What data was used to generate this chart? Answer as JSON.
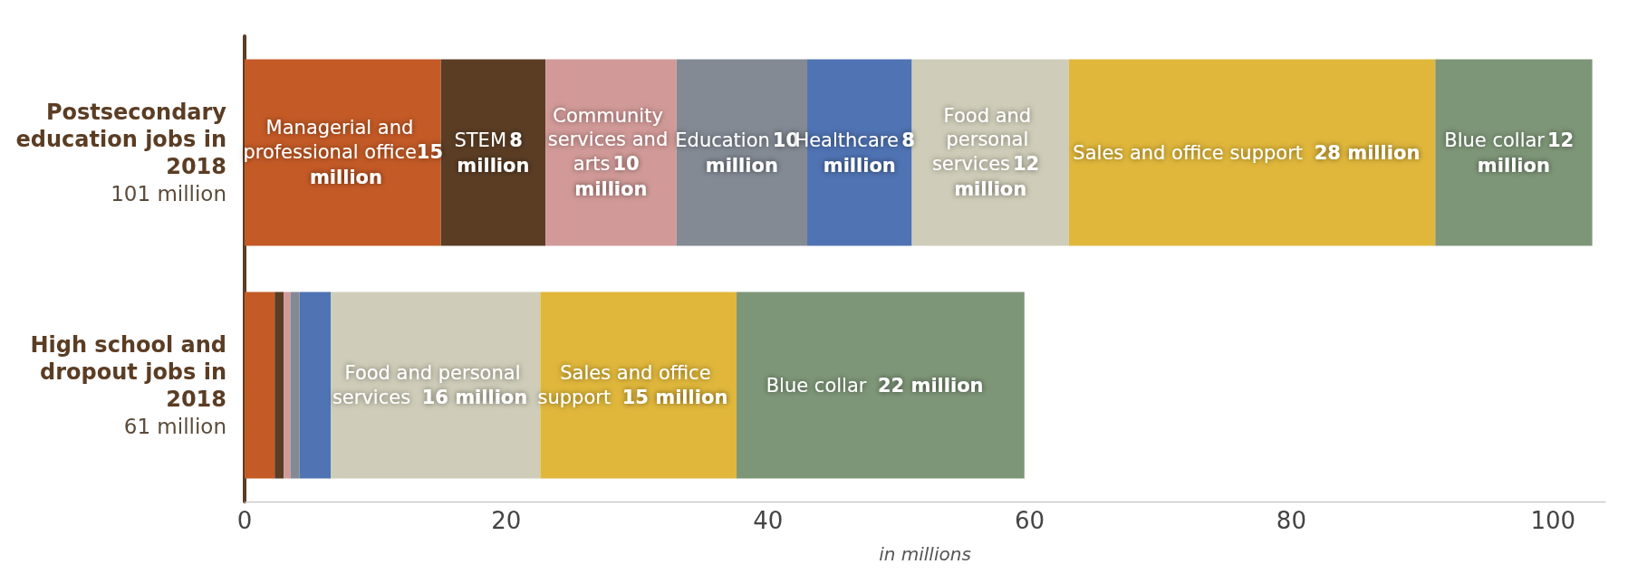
{
  "chart_data": {
    "type": "bar",
    "orientation": "horizontal",
    "stacked": true,
    "xlabel": "in millions",
    "categories": [
      "Postsecondary education jobs in 2018",
      "High school and dropout jobs in 2018"
    ],
    "totals": [
      "101 million",
      "61 million"
    ],
    "series": [
      {
        "name": "Managerial and professional office",
        "color": "#c45a26",
        "values": [
          15,
          2.3
        ],
        "value_labels": [
          "15 million",
          null
        ]
      },
      {
        "name": "STEM",
        "color": "#5b3d24",
        "values": [
          8,
          0.7
        ],
        "value_labels": [
          "8 million",
          null
        ]
      },
      {
        "name": "Community services and arts",
        "color": "#d19a98",
        "values": [
          10,
          0.5
        ],
        "value_labels": [
          "10 million",
          null
        ]
      },
      {
        "name": "Education",
        "color": "#838a94",
        "values": [
          10,
          0.7
        ],
        "value_labels": [
          "10 million",
          null
        ]
      },
      {
        "name": "Healthcare",
        "color": "#4f73b3",
        "values": [
          8,
          2.4
        ],
        "value_labels": [
          "8 million",
          null
        ]
      },
      {
        "name": "Food and personal services",
        "color": "#cfcdb9",
        "values": [
          12,
          16
        ],
        "value_labels": [
          "12 million",
          "16 million"
        ]
      },
      {
        "name": "Sales and office support",
        "color": "#e0b73b",
        "values": [
          28,
          15
        ],
        "value_labels": [
          "28 million",
          "15 million"
        ]
      },
      {
        "name": "Blue collar",
        "color": "#7e9678",
        "values": [
          12,
          22
        ],
        "value_labels": [
          "12 million",
          "22 million"
        ]
      }
    ],
    "xlim": [
      0,
      104
    ],
    "xticks": [
      0,
      20,
      40,
      60,
      80,
      100
    ],
    "grid": false,
    "legend": false
  }
}
